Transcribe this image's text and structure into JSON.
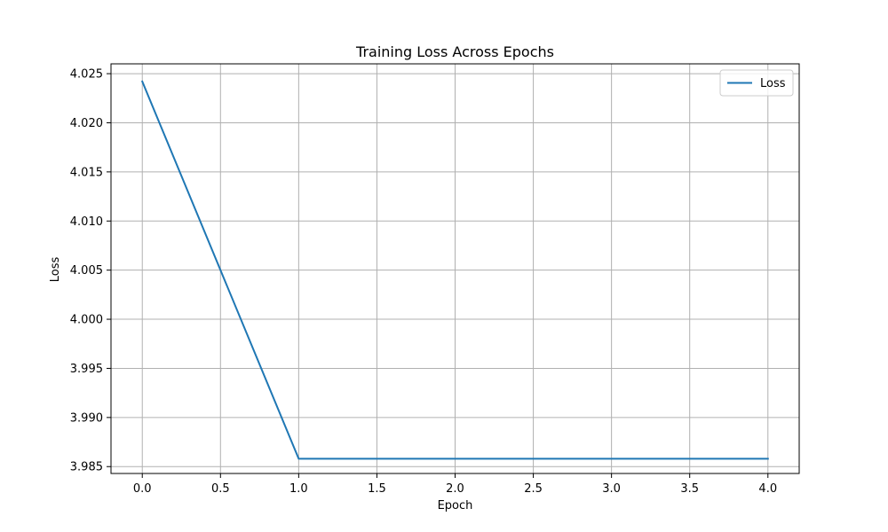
{
  "chart_data": {
    "type": "line",
    "title": "Training Loss Across Epochs",
    "xlabel": "Epoch",
    "ylabel": "Loss",
    "xlim": [
      -0.2,
      4.2
    ],
    "ylim": [
      3.9843,
      4.026
    ],
    "x_ticks": [
      "0.0",
      "0.5",
      "1.0",
      "1.5",
      "2.0",
      "2.5",
      "3.0",
      "3.5",
      "4.0"
    ],
    "y_ticks": [
      "3.985",
      "3.990",
      "3.995",
      "4.000",
      "4.005",
      "4.010",
      "4.015",
      "4.020",
      "4.025"
    ],
    "grid": true,
    "legend_position": "top-right",
    "series": [
      {
        "name": "Loss",
        "color": "#1f77b4",
        "x": [
          0,
          1,
          2,
          3,
          4
        ],
        "y": [
          4.0242,
          3.9858,
          3.9858,
          3.9858,
          3.9858
        ]
      }
    ]
  }
}
